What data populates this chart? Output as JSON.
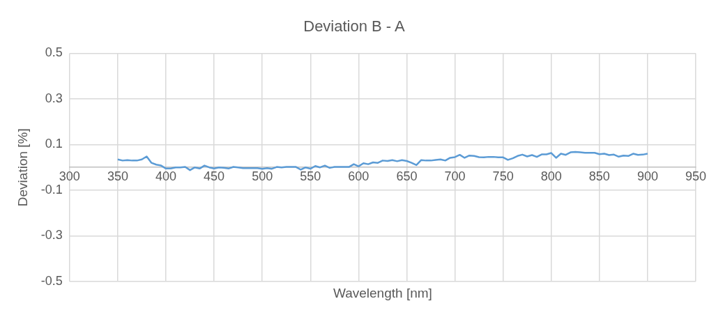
{
  "chart_data": {
    "type": "line",
    "title": "Deviation B - A",
    "xlabel": "Wavelength [nm]",
    "ylabel": "Deviation [%]",
    "xlim": [
      300,
      950
    ],
    "xticks": [
      300,
      350,
      400,
      450,
      500,
      550,
      600,
      650,
      700,
      750,
      800,
      850,
      900,
      950
    ],
    "ylim": [
      -0.5,
      0.5
    ],
    "yticks": [
      -0.5,
      -0.3,
      -0.1,
      0.1,
      0.3,
      0.5
    ],
    "grid": true,
    "marker": "none",
    "line_style": "solid",
    "x": [
      350,
      355,
      360,
      365,
      370,
      375,
      380,
      385,
      390,
      395,
      400,
      405,
      410,
      415,
      420,
      425,
      430,
      435,
      440,
      445,
      450,
      455,
      460,
      465,
      470,
      475,
      480,
      485,
      490,
      495,
      500,
      505,
      510,
      515,
      520,
      525,
      530,
      535,
      540,
      545,
      550,
      555,
      560,
      565,
      570,
      575,
      580,
      585,
      590,
      595,
      600,
      605,
      610,
      615,
      620,
      625,
      630,
      635,
      640,
      645,
      650,
      655,
      660,
      665,
      670,
      675,
      680,
      685,
      690,
      695,
      700,
      705,
      710,
      715,
      720,
      725,
      730,
      735,
      740,
      745,
      750,
      755,
      760,
      765,
      770,
      775,
      780,
      785,
      790,
      795,
      800,
      805,
      810,
      815,
      820,
      825,
      830,
      835,
      840,
      845,
      850,
      855,
      860,
      865,
      870,
      875,
      880,
      885,
      890,
      895,
      900
    ],
    "series": [
      {
        "color": "#5b9bd5",
        "values": [
          0.035,
          0.03,
          0.032,
          0.03,
          0.03,
          0.035,
          0.048,
          0.02,
          0.012,
          0.008,
          -0.005,
          -0.005,
          0.0,
          0.0,
          0.002,
          -0.012,
          0.0,
          -0.005,
          0.008,
          0.0,
          -0.005,
          0.0,
          -0.002,
          -0.005,
          0.002,
          0.0,
          -0.003,
          -0.003,
          -0.003,
          -0.003,
          -0.006,
          -0.003,
          -0.006,
          0.002,
          0.0,
          0.002,
          0.002,
          0.002,
          -0.01,
          0.0,
          -0.006,
          0.006,
          0.0,
          0.008,
          -0.002,
          0.002,
          0.002,
          0.002,
          0.002,
          0.014,
          0.005,
          0.018,
          0.014,
          0.022,
          0.02,
          0.03,
          0.028,
          0.032,
          0.027,
          0.032,
          0.028,
          0.02,
          0.01,
          0.032,
          0.03,
          0.03,
          0.033,
          0.035,
          0.03,
          0.042,
          0.045,
          0.055,
          0.042,
          0.052,
          0.05,
          0.045,
          0.044,
          0.046,
          0.046,
          0.044,
          0.044,
          0.033,
          0.04,
          0.05,
          0.056,
          0.048,
          0.054,
          0.046,
          0.057,
          0.057,
          0.063,
          0.042,
          0.06,
          0.055,
          0.066,
          0.068,
          0.066,
          0.064,
          0.064,
          0.064,
          0.058,
          0.06,
          0.054,
          0.056,
          0.047,
          0.052,
          0.05,
          0.06,
          0.055,
          0.056,
          0.06
        ]
      }
    ]
  }
}
